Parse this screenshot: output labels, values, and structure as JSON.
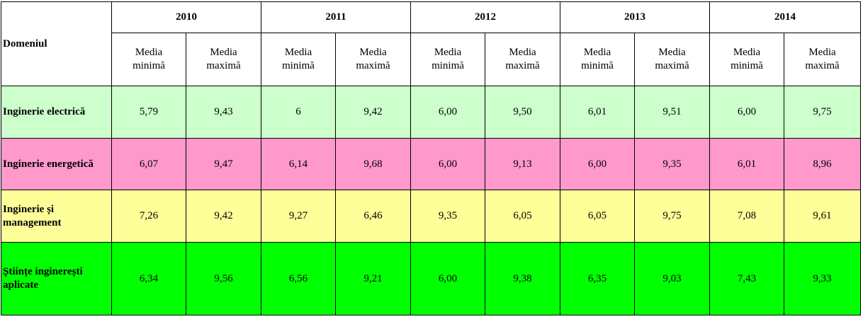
{
  "table": {
    "domain_header": "Domeniul",
    "years": [
      "2010",
      "2011",
      "2012",
      "2013",
      "2014"
    ],
    "sub_headers": [
      "Media minimă",
      "Media maximă"
    ],
    "row_colors": [
      "#ccffcc",
      "#ff99cc",
      "#ffff99",
      "#00ff00"
    ],
    "rows": [
      {
        "domain": "Inginerie electrică",
        "values": [
          "5,79",
          "9,43",
          "6",
          "9,42",
          "6,00",
          "9,50",
          "6,01",
          "9,51",
          "6,00",
          "9,75"
        ]
      },
      {
        "domain": "Inginerie energetică",
        "values": [
          "6,07",
          "9,47",
          "6,14",
          "9,68",
          "6,00",
          "9,13",
          "6,00",
          "9,35",
          "6,01",
          "8,96"
        ]
      },
      {
        "domain": "Inginerie și management",
        "values": [
          "7,26",
          "9,42",
          "9,27",
          "6,46",
          "9,35",
          "6,05",
          "6,05",
          "9,75",
          "7,08",
          "9,61"
        ]
      },
      {
        "domain": "Științe inginerești aplicate",
        "values": [
          "6,34",
          "9,56",
          "6,56",
          "9,21",
          "6,00",
          "9,38",
          "6,35",
          "9,03",
          "7,43",
          "9,33"
        ]
      }
    ]
  }
}
